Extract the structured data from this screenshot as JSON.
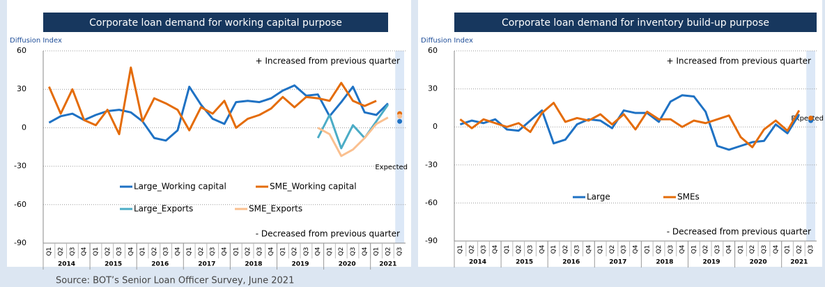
{
  "source": "Source: BOT’s Senior Loan Officer Survey, June 2021",
  "chart_data": [
    {
      "type": "line",
      "title": "Corporate loan demand for working capital purpose",
      "y_axis_label": "Diffusion Index",
      "annotations": [
        "+ Increased from previous quarter",
        "- Decreased from previous quarter",
        "Expected"
      ],
      "categories": [
        "Q1",
        "Q2",
        "Q3",
        "Q4",
        "Q1",
        "Q2",
        "Q3",
        "Q4",
        "Q1",
        "Q2",
        "Q3",
        "Q4",
        "Q1",
        "Q2",
        "Q3",
        "Q4",
        "Q1",
        "Q2",
        "Q3",
        "Q4",
        "Q1",
        "Q2",
        "Q3",
        "Q4",
        "Q1",
        "Q2",
        "Q3",
        "Q4",
        "Q1",
        "Q2",
        "Q3"
      ],
      "year_groups": [
        "2014",
        "2015",
        "2016",
        "2017",
        "2018",
        "2019",
        "2020",
        "2021"
      ],
      "ylim": [
        -90,
        60
      ],
      "yticks": [
        60,
        30,
        0,
        -30,
        -60,
        -90
      ],
      "grid": true,
      "series": [
        {
          "name": "Large_Working capital",
          "color": "#1f72c4",
          "expected": 5,
          "values": [
            4,
            9,
            11,
            6,
            10,
            13,
            14,
            12,
            5,
            -8,
            -10,
            -2,
            32,
            18,
            7,
            3,
            20,
            21,
            20,
            23,
            29,
            33,
            25,
            26,
            9,
            20,
            32,
            12,
            10,
            19,
            null
          ]
        },
        {
          "name": "SME_Working capital",
          "color": "#e46c0a",
          "expected": 11,
          "values": [
            32,
            11,
            30,
            6,
            2,
            14,
            -5,
            47,
            5,
            23,
            19,
            14,
            -2,
            16,
            11,
            21,
            0,
            7,
            10,
            15,
            24,
            16,
            24,
            23,
            21,
            35,
            21,
            17,
            21,
            null,
            null
          ]
        },
        {
          "name": "Large_Exports",
          "color": "#4bacc6",
          "values": [
            null,
            null,
            null,
            null,
            null,
            null,
            null,
            null,
            null,
            null,
            null,
            null,
            null,
            null,
            null,
            null,
            null,
            null,
            null,
            null,
            null,
            null,
            null,
            -8,
            10,
            -16,
            2,
            -8,
            5,
            18,
            null
          ]
        },
        {
          "name": "SME_Exports",
          "color": "#fac090",
          "expected": 9,
          "values": [
            null,
            null,
            null,
            null,
            null,
            null,
            null,
            null,
            null,
            null,
            null,
            null,
            null,
            null,
            null,
            null,
            null,
            null,
            null,
            null,
            null,
            null,
            null,
            0,
            -5,
            -22,
            -17,
            -8,
            3,
            8,
            null
          ]
        }
      ]
    },
    {
      "type": "line",
      "title": "Corporate loan demand for inventory build-up purpose",
      "y_axis_label": "Diffusion Index",
      "annotations": [
        "+ Increased from previous quarter",
        "- Decreased from previous quarter",
        "Expected"
      ],
      "categories": [
        "Q1",
        "Q2",
        "Q3",
        "Q4",
        "Q1",
        "Q2",
        "Q3",
        "Q4",
        "Q1",
        "Q2",
        "Q3",
        "Q4",
        "Q1",
        "Q2",
        "Q3",
        "Q4",
        "Q1",
        "Q2",
        "Q3",
        "Q4",
        "Q1",
        "Q2",
        "Q3",
        "Q4",
        "Q1",
        "Q2",
        "Q3",
        "Q4",
        "Q1",
        "Q2",
        "Q3"
      ],
      "year_groups": [
        "2014",
        "2015",
        "2016",
        "2017",
        "2018",
        "2019",
        "2020",
        "2021"
      ],
      "ylim": [
        -90,
        60
      ],
      "yticks": [
        60,
        30,
        0,
        -30,
        -60,
        -90
      ],
      "grid": true,
      "series": [
        {
          "name": "Large",
          "color": "#1f72c4",
          "expected": 5,
          "values": [
            2,
            5,
            3,
            6,
            -2,
            -3,
            5,
            13,
            -13,
            -10,
            2,
            6,
            5,
            -1,
            13,
            11,
            11,
            4,
            20,
            25,
            24,
            12,
            -15,
            -18,
            -15,
            -12,
            -11,
            2,
            -5,
            10,
            null
          ]
        },
        {
          "name": "SMEs",
          "color": "#e46c0a",
          "expected": 7,
          "values": [
            6,
            -1,
            6,
            3,
            0,
            3,
            -4,
            11,
            19,
            4,
            7,
            5,
            10,
            2,
            10,
            -2,
            12,
            6,
            6,
            0,
            5,
            3,
            6,
            9,
            -8,
            -16,
            -2,
            5,
            -3,
            13,
            null
          ]
        }
      ]
    }
  ]
}
